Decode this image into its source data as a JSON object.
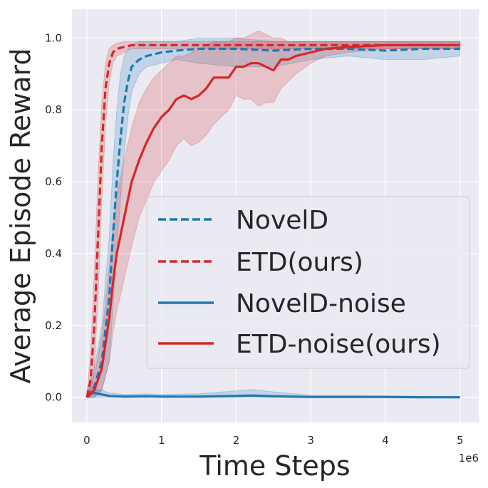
{
  "colors": {
    "background": "#eaeaf2",
    "grid": "#ffffff",
    "blue": "#1f77b4",
    "red": "#d62728"
  },
  "chart_data": {
    "type": "line",
    "title": "",
    "xlabel": "Time Steps",
    "ylabel": "Average Episode Reward",
    "x_offset_label": "1e6",
    "xlim": [
      -0.2,
      5.25
    ],
    "ylim": [
      -0.07,
      1.08
    ],
    "x_ticks": [
      0,
      1,
      2,
      3,
      4,
      5
    ],
    "x_tick_labels": [
      "0",
      "1",
      "2",
      "3",
      "4",
      "5"
    ],
    "y_ticks": [
      0.0,
      0.2,
      0.4,
      0.6,
      0.8,
      1.0
    ],
    "y_tick_labels": [
      "0.0",
      "0.2",
      "0.4",
      "0.6",
      "0.8",
      "1.0"
    ],
    "grid": true,
    "legend_position": "center-right",
    "series": [
      {
        "name": "NovelD",
        "color": "#1f77b4",
        "style": "dashed",
        "x": [
          0,
          0.1,
          0.2,
          0.3,
          0.35,
          0.4,
          0.45,
          0.5,
          0.55,
          0.6,
          0.7,
          0.8,
          1.0,
          1.2,
          1.5,
          2.0,
          2.5,
          3.0,
          3.5,
          4.0,
          4.5,
          5.0
        ],
        "y": [
          0,
          0.03,
          0.1,
          0.28,
          0.45,
          0.6,
          0.72,
          0.82,
          0.88,
          0.92,
          0.94,
          0.95,
          0.96,
          0.965,
          0.97,
          0.97,
          0.965,
          0.97,
          0.97,
          0.965,
          0.97,
          0.97
        ],
        "band_upper": [
          0.02,
          0.08,
          0.2,
          0.45,
          0.65,
          0.8,
          0.9,
          0.95,
          0.97,
          0.98,
          0.99,
          0.99,
          0.99,
          0.99,
          1.0,
          1.0,
          0.99,
          0.99,
          0.99,
          0.99,
          0.99,
          0.99
        ],
        "band_lower": [
          0,
          0.0,
          0.02,
          0.1,
          0.25,
          0.4,
          0.55,
          0.68,
          0.78,
          0.85,
          0.9,
          0.92,
          0.93,
          0.94,
          0.93,
          0.92,
          0.92,
          0.94,
          0.95,
          0.94,
          0.94,
          0.95
        ]
      },
      {
        "name": "ETD(ours)",
        "color": "#d62728",
        "style": "dashed",
        "x": [
          0,
          0.05,
          0.1,
          0.15,
          0.2,
          0.25,
          0.3,
          0.35,
          0.4,
          0.5,
          0.6,
          0.8,
          1.0,
          1.5,
          2.0,
          3.0,
          4.0,
          5.0
        ],
        "y": [
          0,
          0.05,
          0.2,
          0.45,
          0.7,
          0.86,
          0.93,
          0.96,
          0.97,
          0.975,
          0.98,
          0.98,
          0.98,
          0.98,
          0.98,
          0.98,
          0.98,
          0.98
        ],
        "band_upper": [
          0.01,
          0.12,
          0.35,
          0.62,
          0.82,
          0.93,
          0.97,
          0.98,
          0.985,
          0.99,
          0.99,
          0.99,
          0.99,
          0.99,
          0.99,
          0.99,
          0.99,
          0.99
        ],
        "band_lower": [
          0,
          0.0,
          0.08,
          0.28,
          0.55,
          0.76,
          0.88,
          0.93,
          0.95,
          0.96,
          0.97,
          0.97,
          0.97,
          0.97,
          0.97,
          0.97,
          0.97,
          0.97
        ]
      },
      {
        "name": "NovelD-noise",
        "color": "#1f77b4",
        "style": "solid",
        "x": [
          0,
          0.05,
          0.1,
          0.2,
          0.3,
          0.5,
          0.8,
          1.0,
          1.5,
          2.0,
          2.2,
          2.5,
          3.0,
          3.5,
          4.0,
          4.5,
          5.0
        ],
        "y": [
          0,
          0.01,
          0.012,
          0.008,
          0.004,
          0.002,
          0.003,
          0.002,
          0.002,
          0.004,
          0.005,
          0.003,
          0.001,
          0.001,
          0.001,
          0.0,
          0.0
        ],
        "band_upper": [
          0.01,
          0.025,
          0.025,
          0.02,
          0.012,
          0.008,
          0.01,
          0.008,
          0.01,
          0.018,
          0.022,
          0.015,
          0.006,
          0.005,
          0.004,
          0.003,
          0.003
        ],
        "band_lower": [
          0,
          0.0,
          0.0,
          0.0,
          0.0,
          0.0,
          0.0,
          0.0,
          0.0,
          0.0,
          0.0,
          0.0,
          0.0,
          0.0,
          0.0,
          0.0,
          0.0
        ]
      },
      {
        "name": "ETD-noise(ours)",
        "color": "#d62728",
        "style": "solid",
        "x": [
          0,
          0.1,
          0.2,
          0.3,
          0.35,
          0.4,
          0.5,
          0.6,
          0.7,
          0.8,
          0.9,
          1.0,
          1.1,
          1.2,
          1.3,
          1.4,
          1.5,
          1.6,
          1.7,
          1.8,
          1.9,
          2.0,
          2.1,
          2.2,
          2.3,
          2.4,
          2.5,
          2.6,
          2.7,
          2.8,
          3.0,
          3.2,
          3.5,
          4.0,
          4.5,
          5.0
        ],
        "y": [
          0,
          0.02,
          0.08,
          0.22,
          0.32,
          0.4,
          0.5,
          0.6,
          0.66,
          0.71,
          0.75,
          0.78,
          0.8,
          0.83,
          0.84,
          0.83,
          0.84,
          0.86,
          0.89,
          0.89,
          0.89,
          0.92,
          0.92,
          0.93,
          0.93,
          0.92,
          0.91,
          0.94,
          0.94,
          0.95,
          0.96,
          0.97,
          0.975,
          0.98,
          0.98,
          0.98
        ],
        "band_upper": [
          0.01,
          0.06,
          0.17,
          0.36,
          0.47,
          0.56,
          0.66,
          0.75,
          0.82,
          0.86,
          0.89,
          0.91,
          0.93,
          0.95,
          0.95,
          0.96,
          0.97,
          0.98,
          0.99,
          0.99,
          0.99,
          1.0,
          1.0,
          1.01,
          1.02,
          1.01,
          1.0,
          1.0,
          0.99,
          0.99,
          0.99,
          0.99,
          0.99,
          0.99,
          0.99,
          0.99
        ],
        "band_lower": [
          0,
          0.0,
          0.02,
          0.1,
          0.18,
          0.24,
          0.33,
          0.42,
          0.5,
          0.55,
          0.6,
          0.63,
          0.66,
          0.7,
          0.72,
          0.7,
          0.71,
          0.73,
          0.76,
          0.78,
          0.8,
          0.84,
          0.83,
          0.83,
          0.81,
          0.82,
          0.82,
          0.86,
          0.88,
          0.9,
          0.93,
          0.95,
          0.96,
          0.97,
          0.97,
          0.97
        ]
      }
    ]
  }
}
